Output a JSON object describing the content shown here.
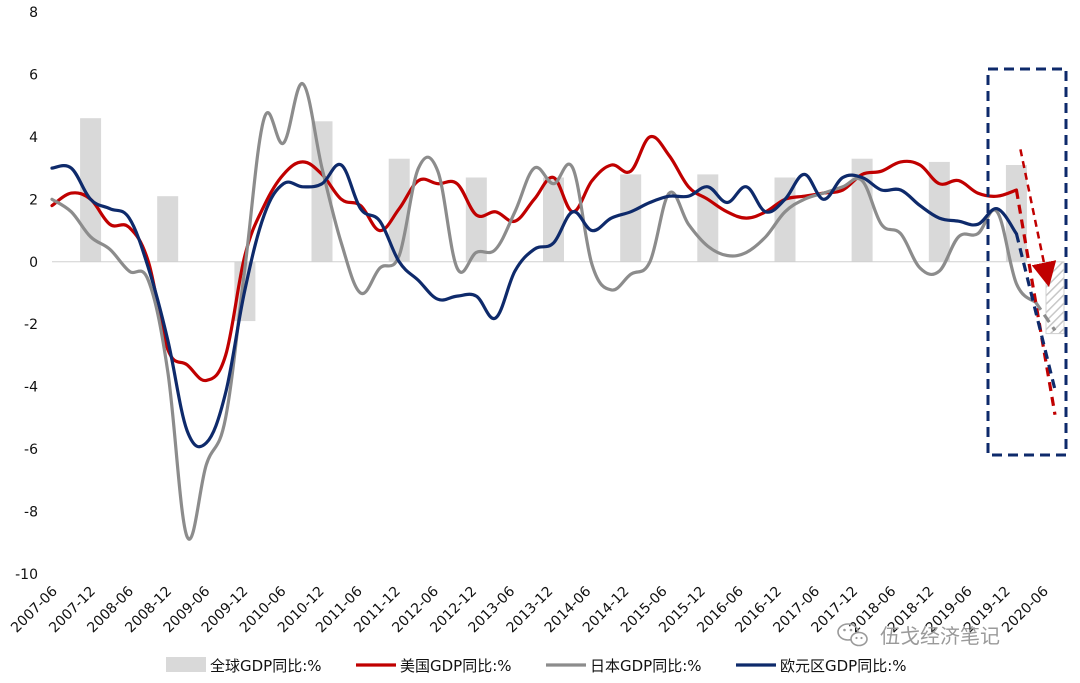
{
  "chart_data": {
    "type": "line",
    "title": "",
    "xlabel": "",
    "ylabel": "",
    "ylim": [
      -10,
      8
    ],
    "yticks": [
      8,
      6,
      4,
      2,
      0,
      -2,
      -4,
      -6,
      -8,
      -10
    ],
    "x_tick_labels": [
      "2007-06",
      "2007-12",
      "2008-06",
      "2008-12",
      "2009-06",
      "2009-12",
      "2010-06",
      "2010-12",
      "2011-06",
      "2011-12",
      "2012-06",
      "2012-12",
      "2013-06",
      "2013-12",
      "2014-06",
      "2014-12",
      "2015-06",
      "2015-12",
      "2016-06",
      "2016-12",
      "2017-06",
      "2017-12",
      "2018-06",
      "2018-12",
      "2019-06",
      "2019-12",
      "2020-06"
    ],
    "grid": false,
    "legend_position": "bottom",
    "bars": {
      "name": "全球GDP同比:%",
      "color": "#d9d9d9",
      "x": [
        2008.0,
        2009.0,
        2010.0,
        2011.0,
        2012.0,
        2013.0,
        2014.0,
        2015.0,
        2016.0,
        2017.0,
        2018.0,
        2019.0,
        2020.0
      ],
      "values": [
        4.6,
        2.1,
        -1.9,
        4.5,
        3.3,
        2.7,
        2.7,
        2.8,
        2.8,
        2.7,
        3.3,
        3.2,
        3.1
      ]
    },
    "forecast_bar": {
      "x": 2020.5,
      "value": -2.3,
      "pattern": "hatched"
    },
    "series": [
      {
        "name": "美国GDP同比:%",
        "color": "#c00000",
        "x": [
          2007.5,
          2007.75,
          2008.0,
          2008.25,
          2008.5,
          2008.75,
          2009.0,
          2009.25,
          2009.5,
          2009.75,
          2010.0,
          2010.25,
          2010.5,
          2010.75,
          2011.0,
          2011.25,
          2011.5,
          2011.75,
          2012.0,
          2012.25,
          2012.5,
          2012.75,
          2013.0,
          2013.25,
          2013.5,
          2013.75,
          2014.0,
          2014.25,
          2014.5,
          2014.75,
          2015.0,
          2015.25,
          2015.5,
          2015.75,
          2016.0,
          2016.25,
          2016.5,
          2016.75,
          2017.0,
          2017.25,
          2017.5,
          2017.75,
          2018.0,
          2018.25,
          2018.5,
          2018.75,
          2019.0,
          2019.25,
          2019.5,
          2019.75,
          2020.0
        ],
        "values": [
          1.8,
          2.2,
          2.0,
          1.2,
          1.1,
          0.0,
          -2.8,
          -3.3,
          -3.8,
          -3.0,
          0.2,
          1.8,
          2.8,
          3.2,
          2.8,
          2.0,
          1.8,
          1.0,
          1.7,
          2.6,
          2.5,
          2.5,
          1.5,
          1.6,
          1.3,
          2.0,
          2.7,
          1.6,
          2.6,
          3.1,
          2.9,
          4.0,
          3.4,
          2.4,
          2.0,
          1.6,
          1.4,
          1.6,
          2.0,
          2.1,
          2.2,
          2.3,
          2.8,
          2.9,
          3.2,
          3.1,
          2.5,
          2.6,
          2.2,
          2.1,
          2.3
        ]
      },
      {
        "name": "日本GDP同比:%",
        "color": "#8c8c8c",
        "x": [
          2007.5,
          2007.75,
          2008.0,
          2008.25,
          2008.5,
          2008.75,
          2009.0,
          2009.25,
          2009.5,
          2009.75,
          2010.0,
          2010.25,
          2010.5,
          2010.75,
          2011.0,
          2011.25,
          2011.5,
          2011.75,
          2012.0,
          2012.25,
          2012.5,
          2012.75,
          2013.0,
          2013.25,
          2013.5,
          2013.75,
          2014.0,
          2014.25,
          2014.5,
          2014.75,
          2015.0,
          2015.25,
          2015.5,
          2015.75,
          2016.0,
          2016.25,
          2016.5,
          2016.75,
          2017.0,
          2017.25,
          2017.5,
          2017.75,
          2018.0,
          2018.25,
          2018.5,
          2018.75,
          2019.0,
          2019.25,
          2019.5,
          2019.75,
          2020.0,
          2020.25
        ],
        "values": [
          2.0,
          1.6,
          0.8,
          0.4,
          -0.3,
          -0.6,
          -3.5,
          -8.8,
          -6.5,
          -5.0,
          -0.2,
          4.6,
          3.8,
          5.7,
          3.0,
          0.6,
          -1.0,
          -0.2,
          0.2,
          3.0,
          2.9,
          -0.2,
          0.3,
          0.4,
          1.6,
          3.0,
          2.5,
          3.0,
          -0.1,
          -0.9,
          -0.4,
          0.0,
          2.2,
          1.2,
          0.5,
          0.2,
          0.3,
          0.8,
          1.6,
          2.0,
          2.2,
          2.4,
          2.6,
          1.2,
          0.9,
          -0.2,
          -0.3,
          0.8,
          0.9,
          1.6,
          -0.7,
          -1.3
        ]
      },
      {
        "name": "欧元区GDP同比:%",
        "color": "#0e2a6b",
        "x": [
          2007.5,
          2007.75,
          2008.0,
          2008.25,
          2008.5,
          2008.75,
          2009.0,
          2009.25,
          2009.5,
          2009.75,
          2010.0,
          2010.25,
          2010.5,
          2010.75,
          2011.0,
          2011.25,
          2011.5,
          2011.75,
          2012.0,
          2012.25,
          2012.5,
          2012.75,
          2013.0,
          2013.25,
          2013.5,
          2013.75,
          2014.0,
          2014.25,
          2014.5,
          2014.75,
          2015.0,
          2015.25,
          2015.5,
          2015.75,
          2016.0,
          2016.25,
          2016.5,
          2016.75,
          2017.0,
          2017.25,
          2017.5,
          2017.75,
          2018.0,
          2018.25,
          2018.5,
          2018.75,
          2019.0,
          2019.25,
          2019.5,
          2019.75,
          2020.0
        ],
        "values": [
          3.0,
          3.0,
          2.0,
          1.7,
          1.4,
          -0.2,
          -2.5,
          -5.4,
          -5.8,
          -4.2,
          -0.9,
          1.5,
          2.5,
          2.4,
          2.5,
          3.1,
          1.7,
          1.3,
          0.0,
          -0.6,
          -1.2,
          -1.1,
          -1.1,
          -1.8,
          -0.3,
          0.4,
          0.6,
          1.6,
          1.0,
          1.4,
          1.6,
          1.9,
          2.1,
          2.1,
          2.4,
          1.9,
          2.4,
          1.6,
          2.0,
          2.8,
          2.0,
          2.7,
          2.7,
          2.3,
          2.3,
          1.8,
          1.4,
          1.3,
          1.2,
          1.7,
          0.9
        ]
      }
    ],
    "forecast_segments": [
      {
        "series": "美国GDP同比:%",
        "from": [
          2020.0,
          2.3
        ],
        "to": [
          2020.5,
          -4.9
        ]
      },
      {
        "series": "日本GDP同比:%",
        "from": [
          2020.25,
          -1.3
        ],
        "to": [
          2020.5,
          -2.2
        ]
      },
      {
        "series": "欧元区GDP同比:%",
        "from": [
          2020.0,
          0.9
        ],
        "to": [
          2020.5,
          -4.1
        ]
      }
    ],
    "trend_arrow": {
      "color": "#c00000",
      "from": [
        2020.0,
        3.6
      ],
      "to": [
        2020.5,
        -0.5
      ]
    },
    "highlight_box": {
      "color": "#0e2a6b",
      "style": "dashed"
    }
  },
  "legend": {
    "items": [
      {
        "label": "全球GDP同比:%",
        "color": "#d9d9d9",
        "kind": "bar"
      },
      {
        "label": "美国GDP同比:%",
        "color": "#c00000",
        "kind": "line"
      },
      {
        "label": "日本GDP同比:%",
        "color": "#8c8c8c",
        "kind": "line"
      },
      {
        "label": "欧元区GDP同比:%",
        "color": "#0e2a6b",
        "kind": "line"
      }
    ]
  },
  "watermark": {
    "text": "伍戈经济笔记",
    "icon": "wechat-icon"
  }
}
